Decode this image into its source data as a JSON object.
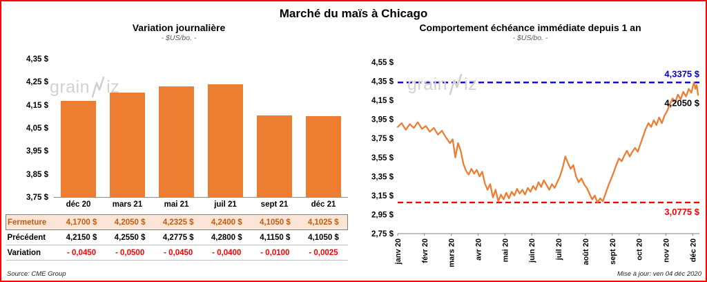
{
  "page": {
    "title": "Marché du maïs à Chicago",
    "source": "Source: CME Group",
    "updated": "Mise à jour: ven 04 déc 2020",
    "watermark": {
      "left": "grain",
      "right": "iz"
    }
  },
  "chart_data": [
    {
      "type": "bar",
      "title": "Variation journalière",
      "subtitle": "- $US/bo. -",
      "categories": [
        "déc 20",
        "mars 21",
        "mai 21",
        "juil 21",
        "sept 21",
        "déc 21"
      ],
      "values": [
        4.17,
        4.205,
        4.2325,
        4.24,
        4.105,
        4.1025
      ],
      "ylim": [
        3.75,
        4.35
      ],
      "ytick_labels": [
        "4,35 $",
        "4,25 $",
        "4,15 $",
        "4,05 $",
        "3,95 $",
        "3,85 $",
        "3,75 $"
      ],
      "bar_color": "#ED7D31",
      "table": {
        "rows": [
          {
            "name": "fermeture",
            "label": "Fermeture",
            "values": [
              "4,1700 $",
              "4,2050 $",
              "4,2325 $",
              "4,2400 $",
              "4,1050 $",
              "4,1025 $"
            ]
          },
          {
            "name": "precedent",
            "label": "Précédent",
            "values": [
              "4,2150 $",
              "4,2550 $",
              "4,2775 $",
              "4,2800 $",
              "4,1150 $",
              "4,1050 $"
            ]
          },
          {
            "name": "variation",
            "label": "Variation",
            "values": [
              "- 0,0450",
              "- 0,0500",
              "- 0,0450",
              "- 0,0400",
              "- 0,0100",
              "- 0,0025"
            ]
          }
        ]
      }
    },
    {
      "type": "line",
      "title": "Comportement échéance immédiate depuis 1 an",
      "subtitle": "- $US/bo. -",
      "x_labels": [
        "janv 20",
        "févr 20",
        "mars 20",
        "avr 20",
        "mai 20",
        "juin 20",
        "juil 20",
        "août 20",
        "sept 20",
        "oct 20",
        "nov 20",
        "déc 20"
      ],
      "ylim": [
        2.75,
        4.55
      ],
      "ytick_step": 0.2,
      "ytick_labels": [
        "4,55 $",
        "4,35 $",
        "4,15 $",
        "3,95 $",
        "3,75 $",
        "3,55 $",
        "3,35 $",
        "3,15 $",
        "2,95 $",
        "2,75 $"
      ],
      "line_color": "#ED7D31",
      "annotations": {
        "high": {
          "value": 4.3375,
          "label": "4,3375 $",
          "color": "#0000CC"
        },
        "last": {
          "value": 4.205,
          "label": "4,2050 $",
          "color": "#000000"
        },
        "low": {
          "value": 3.0775,
          "label": "3,0775 $",
          "color": "#FF0000"
        }
      },
      "series": [
        {
          "name": "échéance immédiate",
          "points": [
            [
              0,
              3.87
            ],
            [
              0.15,
              3.91
            ],
            [
              0.3,
              3.84
            ],
            [
              0.45,
              3.9
            ],
            [
              0.6,
              3.86
            ],
            [
              0.75,
              3.92
            ],
            [
              0.9,
              3.85
            ],
            [
              1.05,
              3.88
            ],
            [
              1.2,
              3.82
            ],
            [
              1.35,
              3.86
            ],
            [
              1.5,
              3.79
            ],
            [
              1.65,
              3.83
            ],
            [
              1.8,
              3.76
            ],
            [
              1.95,
              3.7
            ],
            [
              2.05,
              3.74
            ],
            [
              2.15,
              3.55
            ],
            [
              2.25,
              3.7
            ],
            [
              2.35,
              3.62
            ],
            [
              2.45,
              3.48
            ],
            [
              2.55,
              3.41
            ],
            [
              2.65,
              3.37
            ],
            [
              2.75,
              3.43
            ],
            [
              2.85,
              3.38
            ],
            [
              2.95,
              3.42
            ],
            [
              3.05,
              3.35
            ],
            [
              3.15,
              3.4
            ],
            [
              3.25,
              3.28
            ],
            [
              3.35,
              3.21
            ],
            [
              3.45,
              3.27
            ],
            [
              3.55,
              3.13
            ],
            [
              3.65,
              3.21
            ],
            [
              3.75,
              3.09
            ],
            [
              3.85,
              3.16
            ],
            [
              3.95,
              3.11
            ],
            [
              4.05,
              3.18
            ],
            [
              4.15,
              3.12
            ],
            [
              4.25,
              3.19
            ],
            [
              4.35,
              3.15
            ],
            [
              4.45,
              3.22
            ],
            [
              4.55,
              3.17
            ],
            [
              4.65,
              3.21
            ],
            [
              4.75,
              3.16
            ],
            [
              4.85,
              3.23
            ],
            [
              4.95,
              3.19
            ],
            [
              5.05,
              3.25
            ],
            [
              5.15,
              3.21
            ],
            [
              5.25,
              3.29
            ],
            [
              5.35,
              3.24
            ],
            [
              5.45,
              3.31
            ],
            [
              5.55,
              3.26
            ],
            [
              5.65,
              3.21
            ],
            [
              5.75,
              3.27
            ],
            [
              5.85,
              3.23
            ],
            [
              5.95,
              3.29
            ],
            [
              6.05,
              3.35
            ],
            [
              6.15,
              3.44
            ],
            [
              6.25,
              3.56
            ],
            [
              6.35,
              3.49
            ],
            [
              6.45,
              3.43
            ],
            [
              6.55,
              3.47
            ],
            [
              6.65,
              3.35
            ],
            [
              6.75,
              3.29
            ],
            [
              6.85,
              3.33
            ],
            [
              6.95,
              3.27
            ],
            [
              7.05,
              3.23
            ],
            [
              7.15,
              3.17
            ],
            [
              7.25,
              3.11
            ],
            [
              7.35,
              3.15
            ],
            [
              7.45,
              3.0775
            ],
            [
              7.55,
              3.12
            ],
            [
              7.65,
              3.09
            ],
            [
              7.75,
              3.17
            ],
            [
              7.85,
              3.25
            ],
            [
              7.95,
              3.32
            ],
            [
              8.05,
              3.39
            ],
            [
              8.15,
              3.47
            ],
            [
              8.25,
              3.54
            ],
            [
              8.35,
              3.51
            ],
            [
              8.45,
              3.57
            ],
            [
              8.55,
              3.62
            ],
            [
              8.65,
              3.56
            ],
            [
              8.75,
              3.61
            ],
            [
              8.85,
              3.65
            ],
            [
              8.95,
              3.61
            ],
            [
              9.05,
              3.69
            ],
            [
              9.15,
              3.77
            ],
            [
              9.25,
              3.85
            ],
            [
              9.35,
              3.91
            ],
            [
              9.45,
              3.87
            ],
            [
              9.55,
              3.94
            ],
            [
              9.65,
              3.89
            ],
            [
              9.75,
              3.97
            ],
            [
              9.85,
              3.91
            ],
            [
              9.95,
              3.99
            ],
            [
              10.05,
              4.04
            ],
            [
              10.15,
              4.11
            ],
            [
              10.25,
              4.17
            ],
            [
              10.35,
              4.13
            ],
            [
              10.45,
              4.21
            ],
            [
              10.55,
              4.16
            ],
            [
              10.65,
              4.24
            ],
            [
              10.75,
              4.19
            ],
            [
              10.85,
              4.27
            ],
            [
              10.95,
              4.23
            ],
            [
              11,
              4.29
            ],
            [
              11.05,
              4.3375
            ],
            [
              11.1,
              4.27
            ],
            [
              11.15,
              4.31
            ],
            [
              11.2,
              4.205
            ]
          ]
        }
      ]
    }
  ]
}
